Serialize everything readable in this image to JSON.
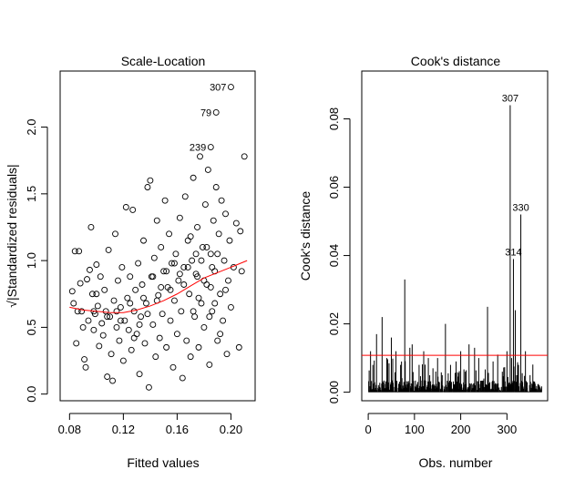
{
  "chart_data": [
    {
      "type": "scatter",
      "title": "Scale-Location",
      "xlabel": "Fitted values",
      "ylabel": "√|Standardized residuals|",
      "xlim": [
        0.073,
        0.218
      ],
      "ylim": [
        -0.05,
        2.42
      ],
      "xticks": [
        0.08,
        0.12,
        0.16,
        0.2
      ],
      "xtick_labels": [
        "0.08",
        "0.12",
        "0.16",
        "0.20"
      ],
      "yticks": [
        0.0,
        0.5,
        1.0,
        1.5,
        2.0
      ],
      "ytick_labels": [
        "0.0",
        "0.5",
        "1.0",
        "1.5",
        "2.0"
      ],
      "grid": false,
      "points": [
        {
          "x": 0.083,
          "y": 0.68
        },
        {
          "x": 0.082,
          "y": 0.77
        },
        {
          "x": 0.084,
          "y": 1.07
        },
        {
          "x": 0.087,
          "y": 1.07
        },
        {
          "x": 0.085,
          "y": 0.38
        },
        {
          "x": 0.088,
          "y": 0.83
        },
        {
          "x": 0.089,
          "y": 0.62
        },
        {
          "x": 0.09,
          "y": 0.5
        },
        {
          "x": 0.091,
          "y": 0.26
        },
        {
          "x": 0.092,
          "y": 0.2
        },
        {
          "x": 0.093,
          "y": 0.86
        },
        {
          "x": 0.094,
          "y": 0.55
        },
        {
          "x": 0.095,
          "y": 0.93
        },
        {
          "x": 0.096,
          "y": 1.25
        },
        {
          "x": 0.097,
          "y": 0.75
        },
        {
          "x": 0.098,
          "y": 0.48
        },
        {
          "x": 0.099,
          "y": 0.6
        },
        {
          "x": 0.1,
          "y": 0.97
        },
        {
          "x": 0.101,
          "y": 0.66
        },
        {
          "x": 0.102,
          "y": 0.36
        },
        {
          "x": 0.103,
          "y": 0.88
        },
        {
          "x": 0.104,
          "y": 0.53
        },
        {
          "x": 0.105,
          "y": 0.44
        },
        {
          "x": 0.106,
          "y": 0.78
        },
        {
          "x": 0.107,
          "y": 0.62
        },
        {
          "x": 0.108,
          "y": 0.13
        },
        {
          "x": 0.109,
          "y": 1.08
        },
        {
          "x": 0.11,
          "y": 0.58
        },
        {
          "x": 0.111,
          "y": 0.3
        },
        {
          "x": 0.112,
          "y": 0.1
        },
        {
          "x": 0.113,
          "y": 0.7
        },
        {
          "x": 0.114,
          "y": 1.2
        },
        {
          "x": 0.115,
          "y": 0.5
        },
        {
          "x": 0.116,
          "y": 0.85
        },
        {
          "x": 0.117,
          "y": 0.4
        },
        {
          "x": 0.118,
          "y": 0.65
        },
        {
          "x": 0.119,
          "y": 0.95
        },
        {
          "x": 0.12,
          "y": 0.25
        },
        {
          "x": 0.121,
          "y": 0.55
        },
        {
          "x": 0.122,
          "y": 1.4
        },
        {
          "x": 0.123,
          "y": 0.72
        },
        {
          "x": 0.124,
          "y": 0.48
        },
        {
          "x": 0.125,
          "y": 0.88
        },
        {
          "x": 0.126,
          "y": 0.33
        },
        {
          "x": 0.127,
          "y": 1.38
        },
        {
          "x": 0.128,
          "y": 0.62
        },
        {
          "x": 0.129,
          "y": 0.78
        },
        {
          "x": 0.13,
          "y": 0.45
        },
        {
          "x": 0.131,
          "y": 0.98
        },
        {
          "x": 0.132,
          "y": 0.15
        },
        {
          "x": 0.133,
          "y": 0.58
        },
        {
          "x": 0.134,
          "y": 0.82
        },
        {
          "x": 0.135,
          "y": 1.15
        },
        {
          "x": 0.136,
          "y": 0.38
        },
        {
          "x": 0.137,
          "y": 0.68
        },
        {
          "x": 0.138,
          "y": 1.55
        },
        {
          "x": 0.139,
          "y": 0.05
        },
        {
          "x": 0.14,
          "y": 1.6
        },
        {
          "x": 0.141,
          "y": 0.88
        },
        {
          "x": 0.142,
          "y": 0.52
        },
        {
          "x": 0.143,
          "y": 1.02
        },
        {
          "x": 0.144,
          "y": 0.28
        },
        {
          "x": 0.145,
          "y": 1.3
        },
        {
          "x": 0.146,
          "y": 0.74
        },
        {
          "x": 0.147,
          "y": 0.42
        },
        {
          "x": 0.148,
          "y": 1.1
        },
        {
          "x": 0.149,
          "y": 0.6
        },
        {
          "x": 0.15,
          "y": 0.92
        },
        {
          "x": 0.151,
          "y": 1.45
        },
        {
          "x": 0.152,
          "y": 0.35
        },
        {
          "x": 0.153,
          "y": 0.8
        },
        {
          "x": 0.154,
          "y": 1.2
        },
        {
          "x": 0.155,
          "y": 0.55
        },
        {
          "x": 0.156,
          "y": 0.98
        },
        {
          "x": 0.157,
          "y": 0.2
        },
        {
          "x": 0.158,
          "y": 0.7
        },
        {
          "x": 0.159,
          "y": 1.05
        },
        {
          "x": 0.16,
          "y": 0.45
        },
        {
          "x": 0.161,
          "y": 0.85
        },
        {
          "x": 0.162,
          "y": 1.32
        },
        {
          "x": 0.163,
          "y": 0.62
        },
        {
          "x": 0.164,
          "y": 0.12
        },
        {
          "x": 0.165,
          "y": 0.95
        },
        {
          "x": 0.166,
          "y": 1.48
        },
        {
          "x": 0.167,
          "y": 0.4
        },
        {
          "x": 0.168,
          "y": 1.15
        },
        {
          "x": 0.169,
          "y": 0.75
        },
        {
          "x": 0.17,
          "y": 0.28
        },
        {
          "x": 0.171,
          "y": 1.0
        },
        {
          "x": 0.172,
          "y": 1.62
        },
        {
          "x": 0.173,
          "y": 0.58
        },
        {
          "x": 0.174,
          "y": 0.9
        },
        {
          "x": 0.175,
          "y": 1.25
        },
        {
          "x": 0.176,
          "y": 0.35
        },
        {
          "x": 0.177,
          "y": 1.78
        },
        {
          "x": 0.178,
          "y": 0.68
        },
        {
          "x": 0.179,
          "y": 1.1
        },
        {
          "x": 0.18,
          "y": 0.5
        },
        {
          "x": 0.181,
          "y": 1.42
        },
        {
          "x": 0.182,
          "y": 0.82
        },
        {
          "x": 0.183,
          "y": 1.68
        },
        {
          "x": 0.184,
          "y": 0.22
        },
        {
          "x": 0.185,
          "y": 1.05
        },
        {
          "x": 0.186,
          "y": 0.62
        },
        {
          "x": 0.187,
          "y": 1.3
        },
        {
          "x": 0.188,
          "y": 0.92
        },
        {
          "x": 0.189,
          "y": 1.55
        },
        {
          "x": 0.19,
          "y": 0.4
        },
        {
          "x": 0.191,
          "y": 1.2
        },
        {
          "x": 0.192,
          "y": 0.75
        },
        {
          "x": 0.193,
          "y": 1.45
        },
        {
          "x": 0.194,
          "y": 0.55
        },
        {
          "x": 0.195,
          "y": 1.0
        },
        {
          "x": 0.196,
          "y": 1.35
        },
        {
          "x": 0.197,
          "y": 0.3
        },
        {
          "x": 0.198,
          "y": 0.85
        },
        {
          "x": 0.199,
          "y": 1.15
        },
        {
          "x": 0.2,
          "y": 0.65
        },
        {
          "x": 0.202,
          "y": 0.95
        },
        {
          "x": 0.204,
          "y": 1.28
        },
        {
          "x": 0.206,
          "y": 0.35
        },
        {
          "x": 0.208,
          "y": 0.92
        },
        {
          "x": 0.21,
          "y": 1.78
        },
        {
          "x": 0.207,
          "y": 1.22
        },
        {
          "x": 0.086,
          "y": 0.62
        },
        {
          "x": 0.1,
          "y": 0.75
        },
        {
          "x": 0.115,
          "y": 0.62
        },
        {
          "x": 0.125,
          "y": 0.68
        },
        {
          "x": 0.135,
          "y": 0.72
        },
        {
          "x": 0.145,
          "y": 0.7
        },
        {
          "x": 0.155,
          "y": 0.78
        },
        {
          "x": 0.165,
          "y": 0.82
        },
        {
          "x": 0.175,
          "y": 0.88
        },
        {
          "x": 0.185,
          "y": 0.8
        },
        {
          "x": 0.178,
          "y": 1.0
        },
        {
          "x": 0.182,
          "y": 1.1
        },
        {
          "x": 0.186,
          "y": 0.95
        },
        {
          "x": 0.19,
          "y": 1.05
        },
        {
          "x": 0.168,
          "y": 0.95
        },
        {
          "x": 0.172,
          "y": 0.62
        },
        {
          "x": 0.176,
          "y": 0.72
        },
        {
          "x": 0.18,
          "y": 0.85
        },
        {
          "x": 0.184,
          "y": 0.58
        },
        {
          "x": 0.188,
          "y": 0.68
        },
        {
          "x": 0.192,
          "y": 0.45
        },
        {
          "x": 0.196,
          "y": 0.78
        },
        {
          "x": 0.17,
          "y": 1.18
        },
        {
          "x": 0.174,
          "y": 1.05
        },
        {
          "x": 0.162,
          "y": 0.9
        },
        {
          "x": 0.158,
          "y": 0.98
        },
        {
          "x": 0.152,
          "y": 0.92
        },
        {
          "x": 0.148,
          "y": 0.8
        },
        {
          "x": 0.142,
          "y": 0.88
        },
        {
          "x": 0.138,
          "y": 0.6
        },
        {
          "x": 0.132,
          "y": 0.52
        },
        {
          "x": 0.128,
          "y": 0.42
        },
        {
          "x": 0.118,
          "y": 0.55
        },
        {
          "x": 0.108,
          "y": 0.58
        },
        {
          "x": 0.098,
          "y": 0.62
        }
      ],
      "labeled_points": [
        {
          "label": "307",
          "x": 0.2,
          "y": 2.3
        },
        {
          "label": "79",
          "x": 0.189,
          "y": 2.11
        },
        {
          "label": "239",
          "x": 0.185,
          "y": 1.85
        }
      ],
      "smooth_color": "#ff0000",
      "smooth_line": [
        {
          "x": 0.08,
          "y": 0.65
        },
        {
          "x": 0.09,
          "y": 0.63
        },
        {
          "x": 0.1,
          "y": 0.62
        },
        {
          "x": 0.11,
          "y": 0.61
        },
        {
          "x": 0.12,
          "y": 0.61
        },
        {
          "x": 0.13,
          "y": 0.63
        },
        {
          "x": 0.14,
          "y": 0.66
        },
        {
          "x": 0.15,
          "y": 0.7
        },
        {
          "x": 0.16,
          "y": 0.75
        },
        {
          "x": 0.17,
          "y": 0.81
        },
        {
          "x": 0.18,
          "y": 0.87
        },
        {
          "x": 0.19,
          "y": 0.91
        },
        {
          "x": 0.2,
          "y": 0.95
        },
        {
          "x": 0.212,
          "y": 1.0
        }
      ]
    },
    {
      "type": "bar",
      "title": "Cook's distance",
      "xlabel": "Obs. number",
      "ylabel": "Cook's distance",
      "xlim": [
        -14,
        388
      ],
      "ylim": [
        -0.0025,
        0.094
      ],
      "xticks": [
        0,
        100,
        200,
        300
      ],
      "xtick_labels": [
        "0",
        "100",
        "200",
        "300"
      ],
      "yticks": [
        0.0,
        0.02,
        0.04,
        0.06,
        0.08
      ],
      "ytick_labels": [
        "0.00",
        "0.02",
        "0.04",
        "0.06",
        "0.08"
      ],
      "grid": false,
      "notable_values": [
        {
          "x": 5,
          "y": 0.012
        },
        {
          "x": 10,
          "y": 0.008
        },
        {
          "x": 18,
          "y": 0.017
        },
        {
          "x": 30,
          "y": 0.022
        },
        {
          "x": 40,
          "y": 0.01
        },
        {
          "x": 50,
          "y": 0.016
        },
        {
          "x": 60,
          "y": 0.012
        },
        {
          "x": 70,
          "y": 0.008
        },
        {
          "x": 79,
          "y": 0.033
        },
        {
          "x": 90,
          "y": 0.013
        },
        {
          "x": 95,
          "y": 0.014
        },
        {
          "x": 110,
          "y": 0.008
        },
        {
          "x": 120,
          "y": 0.012
        },
        {
          "x": 130,
          "y": 0.01
        },
        {
          "x": 140,
          "y": 0.007
        },
        {
          "x": 150,
          "y": 0.01
        },
        {
          "x": 160,
          "y": 0.005
        },
        {
          "x": 167,
          "y": 0.02
        },
        {
          "x": 178,
          "y": 0.008
        },
        {
          "x": 190,
          "y": 0.009
        },
        {
          "x": 200,
          "y": 0.012
        },
        {
          "x": 210,
          "y": 0.006
        },
        {
          "x": 218,
          "y": 0.014
        },
        {
          "x": 230,
          "y": 0.013
        },
        {
          "x": 239,
          "y": 0.01
        },
        {
          "x": 250,
          "y": 0.004
        },
        {
          "x": 258,
          "y": 0.025
        },
        {
          "x": 270,
          "y": 0.009
        },
        {
          "x": 280,
          "y": 0.011
        },
        {
          "x": 290,
          "y": 0.006
        },
        {
          "x": 300,
          "y": 0.012
        },
        {
          "x": 307,
          "y": 0.084
        },
        {
          "x": 310,
          "y": 0.01
        },
        {
          "x": 314,
          "y": 0.039
        },
        {
          "x": 318,
          "y": 0.024
        },
        {
          "x": 325,
          "y": 0.008
        },
        {
          "x": 330,
          "y": 0.052
        },
        {
          "x": 340,
          "y": 0.012
        },
        {
          "x": 350,
          "y": 0.005
        },
        {
          "x": 360,
          "y": 0.003
        },
        {
          "x": 370,
          "y": 0.002
        }
      ],
      "labeled_points": [
        {
          "label": "307",
          "x": 307,
          "y": 0.084
        },
        {
          "label": "330",
          "x": 330,
          "y": 0.052
        },
        {
          "label": "314",
          "x": 314,
          "y": 0.039
        }
      ],
      "reference_line": {
        "y": 0.0108,
        "color": "#ff0000"
      },
      "n_obs": 375
    }
  ]
}
